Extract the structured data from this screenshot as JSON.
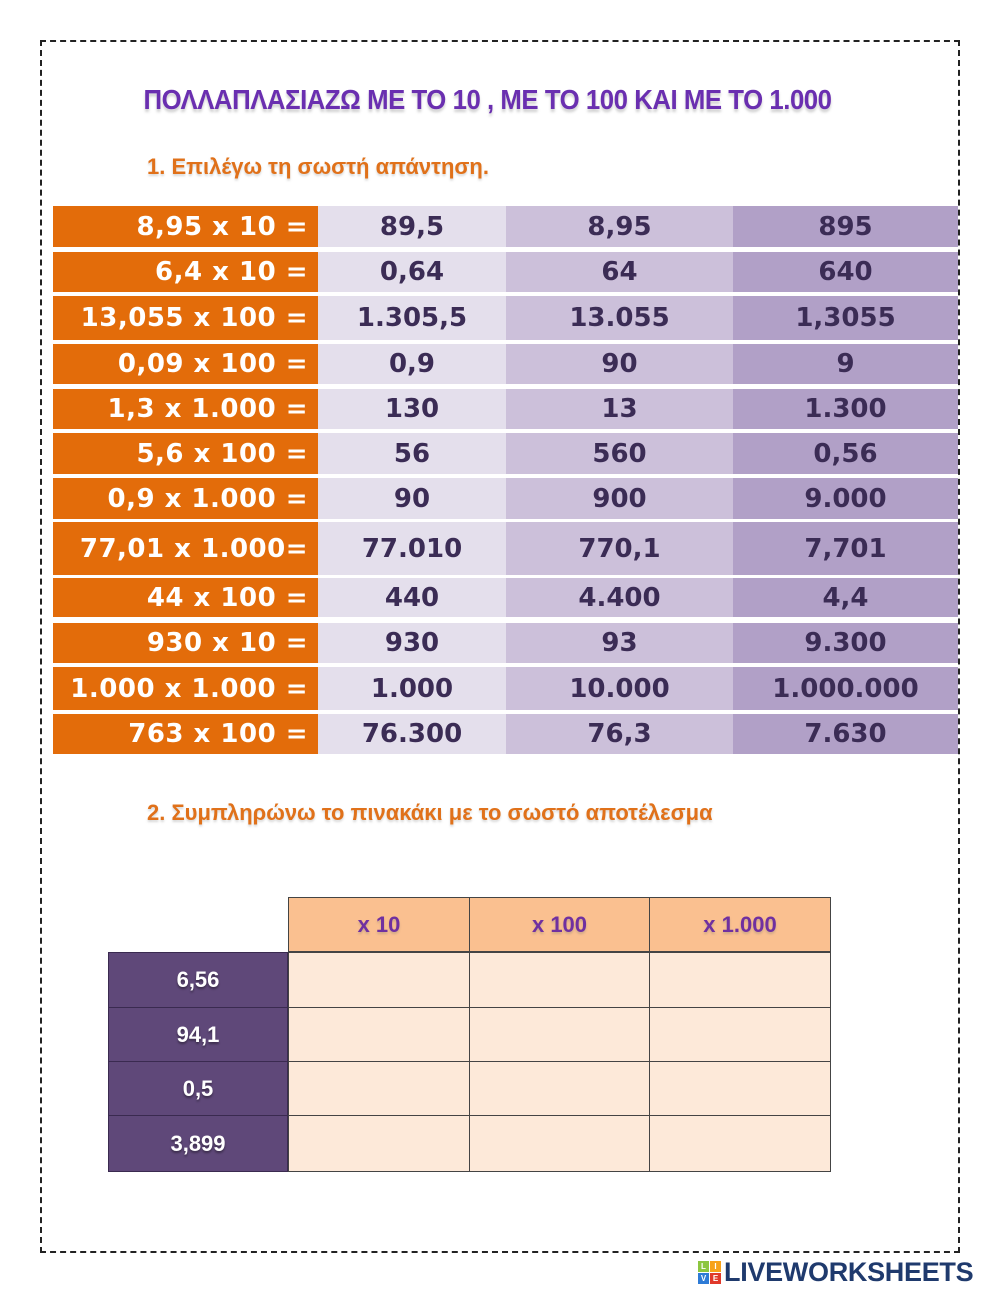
{
  "title": "ΠΟΛΛΑΠΛΑΣΙΑΖΩ ΜΕ ΤΟ 10 , ΜΕ ΤΟ 100 ΚΑΙ ΜΕ ΤΟ 1.000",
  "exercise1": {
    "heading": "1. Επιλέγω τη σωστή απάντηση.",
    "rows": [
      {
        "question": "8,95 x 10 =",
        "options": [
          "89,5",
          "8,95",
          "895"
        ]
      },
      {
        "question": "6,4 x 10 =",
        "options": [
          "0,64",
          "64",
          "640"
        ]
      },
      {
        "question": "13,055 x 100 =",
        "options": [
          "1.305,5",
          "13.055",
          "1,3055"
        ]
      },
      {
        "question": "0,09 x 100 =",
        "options": [
          "0,9",
          "90",
          "9"
        ]
      },
      {
        "question": "1,3 x 1.000 =",
        "options": [
          "130",
          "13",
          "1.300"
        ]
      },
      {
        "question": "5,6 x 100 =",
        "options": [
          "56",
          "560",
          "0,56"
        ]
      },
      {
        "question": "0,9 x 1.000 =",
        "options": [
          "90",
          "900",
          "9.000"
        ]
      },
      {
        "question": "77,01 x 1.000=",
        "options": [
          "77.010",
          "770,1",
          "7,701"
        ]
      },
      {
        "question": "44 x 100 =",
        "options": [
          "440",
          "4.400",
          "4,4"
        ]
      },
      {
        "question": "930 x 10 =",
        "options": [
          "930",
          "93",
          "9.300"
        ]
      },
      {
        "question": "1.000 x 1.000 =",
        "options": [
          "1.000",
          "10.000",
          "1.000.000"
        ]
      },
      {
        "question": "763 x 100 =",
        "options": [
          "76.300",
          "76,3",
          "7.630"
        ]
      }
    ]
  },
  "exercise2": {
    "heading": "2. Συμπληρώνω το πινακάκι με το σωστό αποτέλεσμα",
    "columns": [
      "x 10",
      "x 100",
      "x 1.000"
    ],
    "rows": [
      {
        "label": "6,56",
        "values": [
          "",
          "",
          ""
        ]
      },
      {
        "label": "94,1",
        "values": [
          "",
          "",
          ""
        ]
      },
      {
        "label": "0,5",
        "values": [
          "",
          "",
          ""
        ]
      },
      {
        "label": "3,899",
        "values": [
          "",
          "",
          ""
        ]
      }
    ]
  },
  "footer": {
    "brand": "LIVEWORKSHEETS",
    "logo_letters": [
      "L",
      "I",
      "V",
      "E"
    ],
    "logo_colors": [
      "#8cc63f",
      "#f7a21b",
      "#2e7bd6",
      "#e0392b"
    ]
  },
  "colors": {
    "title": "#6a2fb0",
    "heading": "#e0711a",
    "question_bg": "#e36c0a",
    "option1_bg": "#e4dfec",
    "option2_bg": "#ccc0da",
    "option3_bg": "#b1a0c7",
    "header_bg": "#fac090",
    "label_bg": "#5f4879",
    "input_bg": "#fde9d9"
  }
}
